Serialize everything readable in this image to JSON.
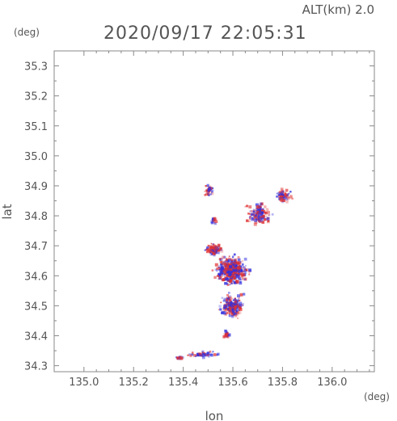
{
  "chart_data": {
    "type": "scatter",
    "title": "2020/09/17 22:05:31",
    "altitude_label": "ALT(km) 2.0",
    "xlabel": "lon",
    "ylabel": "lat",
    "x_unit": "(deg)",
    "y_unit": "(deg)",
    "xlim": [
      134.88,
      136.17
    ],
    "ylim": [
      34.28,
      35.35
    ],
    "x_ticks": [
      "135.0",
      "135.2",
      "135.4",
      "135.6",
      "135.8",
      "136.0"
    ],
    "y_ticks": [
      "34.3",
      "34.4",
      "34.5",
      "34.6",
      "34.7",
      "34.8",
      "34.9",
      "35.0",
      "35.1",
      "35.2",
      "35.3"
    ],
    "grid": false,
    "colors": {
      "positive": "#e03030",
      "negative": "#3030e0"
    },
    "clusters": [
      {
        "lon": 135.59,
        "lat": 34.62,
        "rx": 0.1,
        "ry": 0.07,
        "n": 520
      },
      {
        "lon": 135.52,
        "lat": 34.69,
        "rx": 0.05,
        "ry": 0.03,
        "n": 120
      },
      {
        "lon": 135.59,
        "lat": 34.5,
        "rx": 0.07,
        "ry": 0.06,
        "n": 240
      },
      {
        "lon": 135.57,
        "lat": 34.41,
        "rx": 0.02,
        "ry": 0.02,
        "n": 25
      },
      {
        "lon": 135.7,
        "lat": 34.81,
        "rx": 0.07,
        "ry": 0.05,
        "n": 170
      },
      {
        "lon": 135.8,
        "lat": 34.87,
        "rx": 0.05,
        "ry": 0.03,
        "n": 70
      },
      {
        "lon": 135.5,
        "lat": 34.89,
        "rx": 0.03,
        "ry": 0.03,
        "n": 40
      },
      {
        "lon": 135.52,
        "lat": 34.79,
        "rx": 0.02,
        "ry": 0.02,
        "n": 18
      },
      {
        "lon": 135.47,
        "lat": 34.34,
        "rx": 0.1,
        "ry": 0.015,
        "n": 60
      },
      {
        "lon": 135.38,
        "lat": 34.33,
        "rx": 0.02,
        "ry": 0.008,
        "n": 15
      }
    ]
  }
}
